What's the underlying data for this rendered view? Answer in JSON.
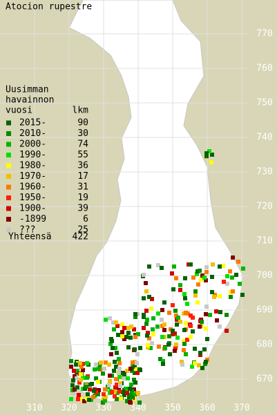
{
  "title": "Atocion rupestre",
  "legend_header": [
    "Uusimman",
    "havainnon",
    "vuosi"
  ],
  "count_header": "lkm",
  "legend": [
    {
      "label": "2015-",
      "count": 90,
      "color": "#006400"
    },
    {
      "label": "2010-",
      "count": 30,
      "color": "#008c00"
    },
    {
      "label": "2000-",
      "count": 74,
      "color": "#00b400"
    },
    {
      "label": "1990-",
      "count": 55,
      "color": "#00e000"
    },
    {
      "label": "1980-",
      "count": 36,
      "color": "#ffff00"
    },
    {
      "label": "1970-",
      "count": 17,
      "color": "#f0c000"
    },
    {
      "label": "1960-",
      "count": 31,
      "color": "#ff7800"
    },
    {
      "label": "1950-",
      "count": 19,
      "color": "#ff2000"
    },
    {
      "label": "1900-",
      "count": 39,
      "color": "#d00000"
    },
    {
      "label": "-1899",
      "count": 6,
      "color": "#800000"
    },
    {
      "label": "???",
      "count": 25,
      "color": "#c8c8c8"
    }
  ],
  "total_label": "Yhteensä",
  "total": 422,
  "x_grid": [
    310,
    320,
    330,
    340,
    350,
    360,
    370
  ],
  "y_grid": [
    670,
    680,
    690,
    700,
    710,
    720,
    730,
    740,
    750,
    760,
    770
  ]
}
